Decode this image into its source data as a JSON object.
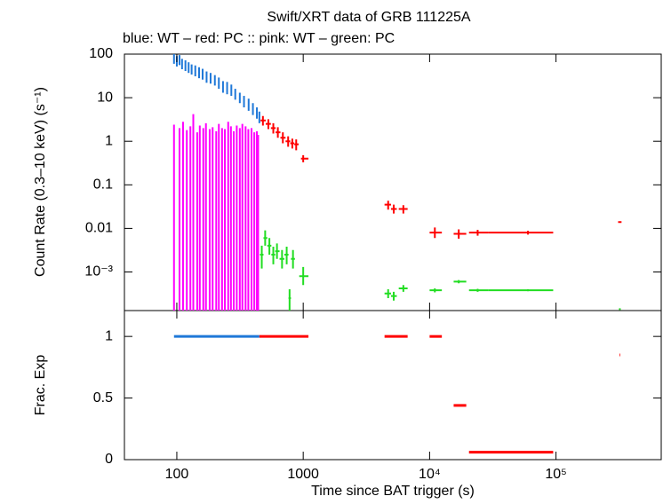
{
  "chart_data": [
    {
      "type": "errorbar",
      "title": "Swift/XRT data of GRB 111225A",
      "subtitle": "blue: WT  – red: PC  :: pink: WT  – green: PC",
      "ylabel": "Count Rate (0.3–10 keV) (s⁻¹)",
      "log_x": true,
      "log_y": true,
      "xlim": [
        38.5,
        680000
      ],
      "ylim": [
        0.00013,
        100
      ],
      "yticks": [
        100,
        10,
        1,
        0.1,
        0.01,
        {
          "value": 0.001,
          "label": "10⁻³"
        }
      ],
      "series": [
        {
          "color": "#1f78d8",
          "x": [
            95,
            100,
            105,
            110,
            117,
            124,
            131,
            140,
            150,
            160,
            172,
            185,
            200,
            215,
            232,
            250,
            270,
            290,
            315,
            340,
            370,
            400,
            430,
            450
          ],
          "values": [
            80,
            70,
            75,
            60,
            55,
            50,
            45,
            42,
            38,
            35,
            30,
            28,
            25,
            22,
            18,
            17,
            15,
            12,
            10,
            8,
            7,
            5.5,
            4.5,
            3.5
          ],
          "y_lo": [
            60,
            52,
            56,
            45,
            41,
            37,
            34,
            31,
            28,
            26,
            22,
            21,
            19,
            16,
            13,
            12,
            11,
            9,
            7.5,
            6,
            5,
            4,
            3.3,
            2.6
          ],
          "y_hi": [
            100,
            90,
            95,
            78,
            72,
            65,
            58,
            55,
            50,
            46,
            40,
            37,
            33,
            29,
            24,
            23,
            20,
            16,
            13,
            11,
            9.5,
            7.5,
            6,
            4.8
          ]
        },
        {
          "color": "#ff0000",
          "x": [
            480,
            530,
            580,
            630,
            690,
            760,
            820,
            880,
            1000,
            4700,
            5200,
            6200,
            11000,
            17000,
            24000,
            60000,
            320000
          ],
          "x_lo": [
            460,
            505,
            555,
            605,
            660,
            725,
            790,
            850,
            960,
            4400,
            4950,
            5700,
            10000,
            15500,
            20500,
            29000,
            310000
          ],
          "x_hi": [
            505,
            555,
            605,
            660,
            725,
            790,
            850,
            920,
            1100,
            4950,
            5500,
            6700,
            12500,
            19500,
            29000,
            95000,
            330000
          ],
          "values": [
            3.0,
            2.5,
            2.0,
            1.6,
            1.2,
            1.0,
            0.9,
            0.85,
            0.4,
            0.035,
            0.028,
            0.028,
            0.008,
            0.0075,
            0.008,
            0.008,
            0.014
          ],
          "y_lo": [
            2.3,
            1.9,
            1.5,
            1.2,
            0.9,
            0.75,
            0.68,
            0.62,
            0.33,
            0.027,
            0.022,
            0.022,
            0.006,
            0.0058,
            0.0068,
            0.0072,
            0.0135
          ],
          "y_hi": [
            3.8,
            3.2,
            2.6,
            2.1,
            1.6,
            1.3,
            1.15,
            1.1,
            0.48,
            0.043,
            0.035,
            0.034,
            0.0105,
            0.0095,
            0.0093,
            0.0088,
            0.0145
          ]
        },
        {
          "color": "#ff00ff",
          "x": [
            95,
            105,
            112,
            120,
            128,
            135,
            145,
            152,
            162,
            170,
            182,
            192,
            205,
            215,
            228,
            240,
            255,
            268,
            282,
            298,
            315,
            330,
            350,
            368,
            390,
            410,
            430,
            440
          ],
          "values": [
            1.5,
            1.2,
            1.8,
            1.1,
            1.4,
            1.6,
            1.0,
            1.5,
            1.3,
            1.7,
            1.2,
            1.4,
            1.1,
            1.6,
            1.3,
            1.2,
            1.8,
            1.4,
            1.1,
            1.5,
            1.3,
            1.6,
            1.4,
            1.2,
            1.3,
            1.0,
            1.1,
            0.9
          ],
          "y_lo": [
            5e-05,
            5e-05,
            5e-05,
            5e-05,
            5e-05,
            5e-05,
            5e-05,
            5e-05,
            5e-05,
            5e-05,
            5e-05,
            5e-05,
            5e-05,
            5e-05,
            5e-05,
            5e-05,
            5e-05,
            5e-05,
            5e-05,
            5e-05,
            5e-05,
            5e-05,
            5e-05,
            5e-05,
            5e-05,
            5e-05,
            5e-05,
            5e-05
          ],
          "y_hi": [
            2.4,
            2.0,
            2.8,
            1.8,
            2.2,
            4.2,
            1.6,
            2.3,
            2.0,
            2.6,
            1.9,
            2.1,
            1.7,
            2.5,
            2.0,
            1.9,
            2.8,
            2.2,
            1.7,
            2.3,
            2.0,
            2.5,
            2.2,
            1.9,
            2.0,
            1.6,
            1.7,
            1.4
          ]
        },
        {
          "color": "#22dd22",
          "x": [
            470,
            500,
            540,
            580,
            620,
            680,
            740,
            780,
            830,
            1000,
            4700,
            5200,
            6200,
            11000,
            17000,
            24000,
            60000,
            320000
          ],
          "x_lo": [
            455,
            485,
            520,
            560,
            600,
            650,
            710,
            765,
            800,
            930,
            4400,
            4950,
            5700,
            10000,
            15500,
            20500,
            29000,
            315000
          ],
          "x_hi": [
            485,
            520,
            560,
            600,
            650,
            710,
            765,
            800,
            860,
            1100,
            4950,
            5500,
            6700,
            12500,
            19500,
            29000,
            95000,
            325000
          ],
          "values": [
            0.0025,
            0.006,
            0.004,
            0.0025,
            0.003,
            0.002,
            0.0025,
            0.00025,
            0.002,
            0.0008,
            0.00032,
            0.00028,
            0.00042,
            0.00038,
            0.0006,
            0.00038,
            0.00038,
            0.00014
          ],
          "y_lo": [
            0.0012,
            0.004,
            0.0025,
            0.0015,
            0.002,
            0.0012,
            0.0015,
            0.00013,
            0.0012,
            0.0005,
            0.00025,
            0.00022,
            0.00035,
            0.00034,
            0.00055,
            0.00035,
            0.00036,
            0.000135
          ],
          "y_hi": [
            0.004,
            0.009,
            0.006,
            0.0038,
            0.0045,
            0.0032,
            0.0038,
            0.0004,
            0.0032,
            0.0013,
            0.0004,
            0.00035,
            0.0005,
            0.00042,
            0.00065,
            0.00041,
            0.0004,
            0.000145
          ]
        }
      ]
    },
    {
      "type": "errorbar",
      "ylabel": "Frac. Exp",
      "xlabel": "Time since BAT trigger (s)",
      "log_x": true,
      "log_y": false,
      "xlim": [
        38.5,
        680000
      ],
      "ylim": [
        0,
        1.21
      ],
      "xticks": [
        100,
        1000,
        {
          "value": 10000,
          "label": "10⁴"
        },
        {
          "value": 100000,
          "label": "10⁵"
        }
      ],
      "yticks": [
        0,
        0.5,
        1
      ],
      "series": [
        {
          "color": "#1f78d8",
          "x_lo": [
            95
          ],
          "x_hi": [
            450
          ],
          "values": [
            1
          ]
        },
        {
          "color": "#ff0000",
          "x_lo": [
            450,
            4400,
            10000,
            15500,
            20500,
            318000
          ],
          "x_hi": [
            1100,
            6700,
            12500,
            19500,
            95000,
            322000
          ],
          "values": [
            1,
            1,
            1,
            0.44,
            0.06,
            0.85
          ]
        }
      ]
    }
  ]
}
